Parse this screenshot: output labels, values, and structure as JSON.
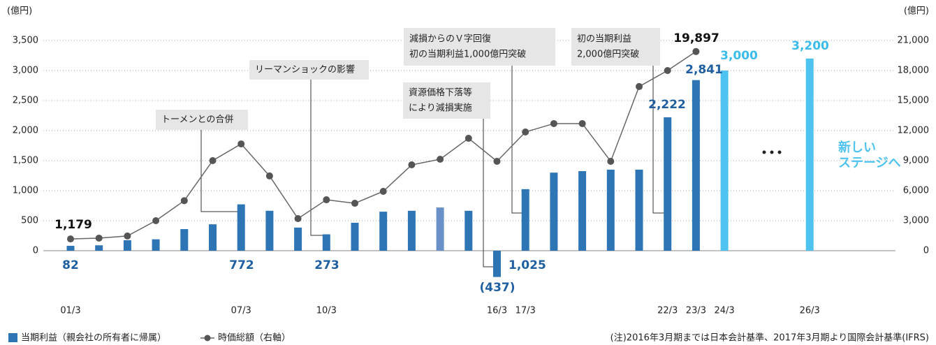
{
  "chart_data": {
    "type": "bar_line",
    "y_unit": "(億円)",
    "y2_unit": "(億円)",
    "categories": [
      "01/3",
      null,
      null,
      null,
      null,
      null,
      "07/3",
      null,
      null,
      "10/3",
      null,
      null,
      null,
      null,
      null,
      "16/3",
      "17/3",
      null,
      null,
      null,
      null,
      "22/3",
      "23/3",
      "24/3",
      null,
      null,
      "26/3"
    ],
    "series": [
      {
        "name": "当期利益（親会社の所有者に帰属）",
        "color": "#2e75b6",
        "colors": [
          "#2e75b6",
          "#2e75b6",
          "#2e75b6",
          "#2e75b6",
          "#2e75b6",
          "#2e75b6",
          "#2e75b6",
          "#2e75b6",
          "#2e75b6",
          "#2e75b6",
          "#2e75b6",
          "#2e75b6",
          "#2e75b6",
          "#6a90c8",
          "#2e75b6",
          "#2e75b6",
          "#2e75b6",
          "#2e75b6",
          "#2e75b6",
          "#2e75b6",
          "#2e75b6",
          "#2e75b6",
          "#2e75b6",
          "#4fc3f0",
          null,
          null,
          "#4fc3f0"
        ],
        "values": [
          82,
          90,
          175,
          190,
          360,
          440,
          772,
          665,
          385,
          273,
          465,
          650,
          665,
          720,
          665,
          -437,
          1025,
          1300,
          1325,
          1350,
          1350,
          2222,
          2841,
          3000,
          null,
          null,
          3200
        ],
        "value_labels": [
          "82",
          null,
          null,
          null,
          null,
          null,
          "772",
          null,
          null,
          "273",
          null,
          null,
          null,
          null,
          null,
          "(437)",
          "1,025",
          null,
          null,
          null,
          null,
          "2,222",
          "2,841",
          "3,000",
          null,
          null,
          "3,200"
        ]
      },
      {
        "name": "時価総額（右軸）",
        "color": "#666666",
        "axis": "y2",
        "values": [
          1179,
          1260,
          1470,
          3000,
          5000,
          9000,
          10670,
          7470,
          3210,
          5090,
          4740,
          5930,
          8580,
          9140,
          11230,
          8930,
          11860,
          12700,
          12700,
          8930,
          16400,
          18000,
          19897,
          null,
          null,
          null,
          null
        ],
        "value_labels": [
          "1,179",
          null,
          null,
          null,
          null,
          null,
          null,
          null,
          null,
          null,
          null,
          null,
          null,
          null,
          null,
          null,
          null,
          null,
          null,
          null,
          null,
          null,
          "19,897",
          null,
          null,
          null,
          null
        ]
      }
    ],
    "ylim": [
      0,
      3500
    ],
    "yticks": [
      0,
      500,
      {
        "value": 1000,
        "label": "1,000"
      },
      {
        "value": 1500,
        "label": "1,500"
      },
      {
        "value": 2000,
        "label": "2,000"
      },
      {
        "value": 2500,
        "label": "2,500"
      },
      {
        "value": 3000,
        "label": "3,000"
      },
      {
        "value": 3500,
        "label": "3,500"
      }
    ],
    "y2lim": [
      0,
      21000
    ],
    "y2ticks": [
      0,
      {
        "value": 3000,
        "label": "3,000"
      },
      {
        "value": 6000,
        "label": "6,000"
      },
      {
        "value": 9000,
        "label": "9,000"
      },
      {
        "value": 12000,
        "label": "12,000"
      },
      {
        "value": 15000,
        "label": "15,000"
      },
      {
        "value": 18000,
        "label": "18,000"
      },
      {
        "value": 21000,
        "label": "21,000"
      }
    ],
    "grid": true,
    "annotations": [
      {
        "lines": [
          "トーメンとの合併"
        ]
      },
      {
        "lines": [
          "リーマンショックの影響"
        ]
      },
      {
        "lines": [
          "資源価格下落等",
          "により減損実施"
        ]
      },
      {
        "lines": [
          "減損からのＶ字回復",
          "初の当期利益1,000億円突破"
        ]
      },
      {
        "lines": [
          "初の当期利益",
          "2,000億円突破"
        ]
      }
    ],
    "forecast_label": [
      "新しい",
      "ステージへ"
    ],
    "note": "(注)2016年3月期までは日本会計基準、2017年3月期より国際会計基準(IFRS)"
  }
}
